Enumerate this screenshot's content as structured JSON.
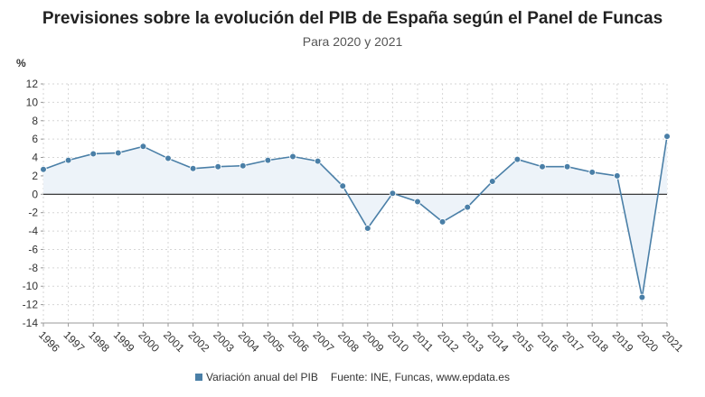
{
  "chart_data": {
    "type": "line",
    "title": "Previsiones sobre la evolución del PIB de España según el Panel de Funcas",
    "subtitle": "Para 2020 y 2021",
    "ylabel": "%",
    "ylim": [
      -14,
      12
    ],
    "yticks": [
      -14,
      -12,
      -10,
      -8,
      -6,
      -4,
      -2,
      0,
      2,
      4,
      6,
      8,
      10,
      12
    ],
    "categories": [
      "1996",
      "1997",
      "1998",
      "1999",
      "2000",
      "2001",
      "2002",
      "2003",
      "2004",
      "2005",
      "2006",
      "2007",
      "2008",
      "2009",
      "2010",
      "2011",
      "2012",
      "2013",
      "2014",
      "2015",
      "2016",
      "2017",
      "2018",
      "2019",
      "2020",
      "2021"
    ],
    "series": [
      {
        "name": "Variación anual del PIB",
        "values": [
          2.7,
          3.7,
          4.4,
          4.5,
          5.2,
          3.9,
          2.8,
          3.0,
          3.1,
          3.7,
          4.1,
          3.6,
          0.9,
          -3.7,
          0.1,
          -0.8,
          -3.0,
          -1.4,
          1.4,
          3.8,
          3.0,
          3.0,
          2.4,
          2.0,
          -11.2,
          6.3
        ]
      }
    ],
    "grid": true,
    "legend": "bottom"
  },
  "footer": {
    "source": "Fuente: INE, Funcas, www.epdata.es"
  },
  "colors": {
    "line": "#4a7fa7",
    "fill": "#edf3f9",
    "grid": "#d6d6d6",
    "zero": "#222222"
  }
}
